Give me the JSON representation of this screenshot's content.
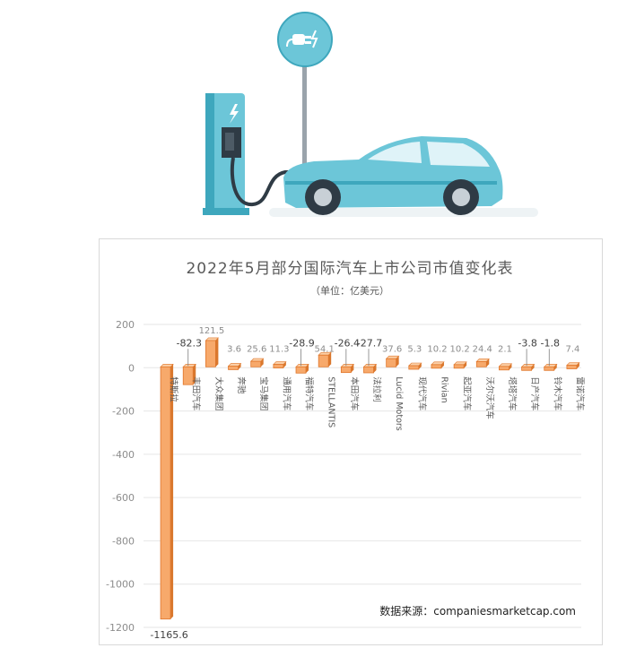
{
  "illustration": {
    "charger_sign_icon": "ev-plug-icon",
    "charger_station_icon": "lightning-bolt-icon",
    "car": "electric-car-icon",
    "colors": {
      "teal": "#6cc6d8",
      "teal_dark": "#3ea7bd",
      "screen": "#2f3b45"
    }
  },
  "chart_data": {
    "type": "bar",
    "title": "2022年5月部分国际汽车上市公司市值变化表",
    "subtitle": "（单位：亿美元）",
    "categories": [
      "特斯拉",
      "丰田汽车",
      "大众集团",
      "奔驰",
      "宝马集团",
      "通用汽车",
      "福特汽车",
      "STELLANTIS",
      "本田汽车",
      "法拉利",
      "Lucid Motors",
      "现代汽车",
      "Rivian",
      "起亚汽车",
      "沃尔沃汽车",
      "塔塔汽车",
      "日产汽车",
      "铃木汽车",
      "雷诺汽车"
    ],
    "values": [
      -1165.6,
      -82.3,
      121.5,
      3.6,
      25.6,
      11.3,
      -28.9,
      54.1,
      -26.4,
      -27.7,
      37.6,
      5.3,
      10.2,
      10.2,
      24.4,
      2.1,
      -3.8,
      -1.8,
      7.4
    ],
    "value_labels": [
      "-1165.6",
      "-82.3",
      "121.5",
      "3.6",
      "25.6",
      "11.3",
      "-28.9",
      "54.1",
      "-26.4",
      "-27.7",
      "37.6",
      "5.3",
      "10.2",
      "10.2",
      "24.4",
      "2.1",
      "-3.8",
      "-1.8",
      "7.4"
    ],
    "y_ticks": [
      "200",
      "0",
      "-200",
      "-400",
      "-600",
      "-800",
      "-1000",
      "-1200"
    ],
    "ylim": [
      -1200,
      200
    ],
    "grid": true,
    "colors": {
      "bar_front": "#f7a96b",
      "bar_top": "#fbd0a8",
      "bar_side": "#d9782e",
      "bar_stroke": "#e0762a"
    }
  },
  "source_note": "数据来源：companiesmarketcap.com"
}
